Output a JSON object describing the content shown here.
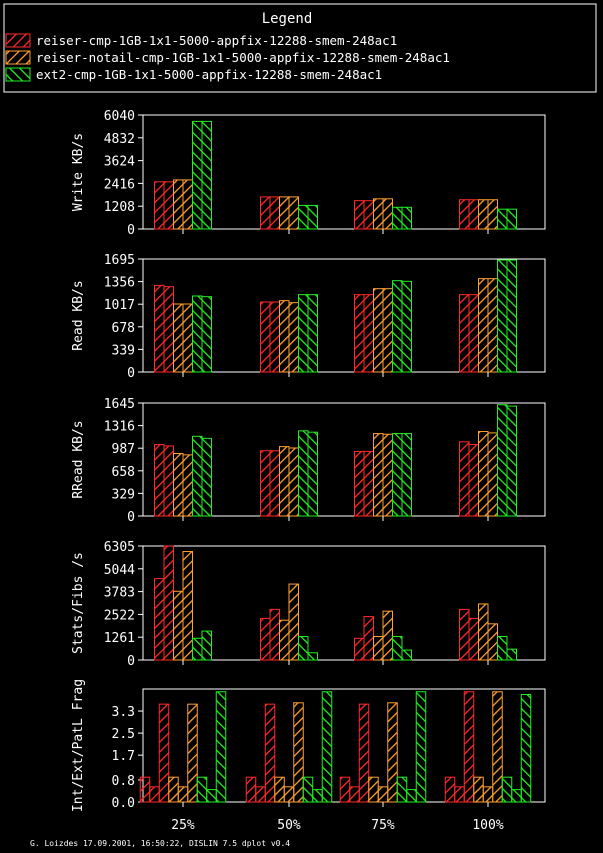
{
  "legend": {
    "title": "Legend",
    "entries": [
      "reiser-cmp-1GB-1x1-5000-appfix-12288-smem-248ac1",
      "reiser-notail-cmp-1GB-1x1-5000-appfix-12288-smem-248ac1",
      "ext2-cmp-1GB-1x1-5000-appfix-12288-smem-248ac1"
    ],
    "colors": [
      "#ff2a2a",
      "#ffa030",
      "#22ee22"
    ]
  },
  "footer": "G. Loizdes 17.09.2001, 16:50:22, DISLIN 7.5 dplot v0.4",
  "chart_data": [
    {
      "type": "bar",
      "ylabel": "Write KB/s",
      "categories": [
        "25%",
        "50%",
        "75%",
        "100%"
      ],
      "yticks": [
        "0",
        "1208",
        "2416",
        "3624",
        "4832",
        "6040"
      ],
      "ylim": [
        0,
        6040
      ],
      "bars_per_series": 2,
      "series": [
        {
          "name": "reiser-cmp-1GB-1x1-5000-appfix-12288-smem-248ac1",
          "values": [
            [
              2500,
              2500
            ],
            [
              1700,
              1700
            ],
            [
              1500,
              1500
            ],
            [
              1550,
              1550
            ]
          ]
        },
        {
          "name": "reiser-notail-cmp-1GB-1x1-5000-appfix-12288-smem-248ac1",
          "values": [
            [
              2600,
              2600
            ],
            [
              1700,
              1700
            ],
            [
              1600,
              1600
            ],
            [
              1550,
              1550
            ]
          ]
        },
        {
          "name": "ext2-cmp-1GB-1x1-5000-appfix-12288-smem-248ac1",
          "values": [
            [
              5700,
              5700
            ],
            [
              1250,
              1250
            ],
            [
              1150,
              1150
            ],
            [
              1050,
              1050
            ]
          ]
        }
      ]
    },
    {
      "type": "bar",
      "ylabel": "Read KB/s",
      "categories": [
        "25%",
        "50%",
        "75%",
        "100%"
      ],
      "yticks": [
        "0",
        "339",
        "678",
        "1017",
        "1356",
        "1695"
      ],
      "ylim": [
        0,
        1695
      ],
      "bars_per_series": 2,
      "series": [
        {
          "name": "reiser-cmp-1GB-1x1-5000-appfix-12288-smem-248ac1",
          "values": [
            [
              1300,
              1280
            ],
            [
              1050,
              1050
            ],
            [
              1160,
              1160
            ],
            [
              1160,
              1160
            ]
          ]
        },
        {
          "name": "reiser-notail-cmp-1GB-1x1-5000-appfix-12288-smem-248ac1",
          "values": [
            [
              1020,
              1020
            ],
            [
              1070,
              1040
            ],
            [
              1250,
              1250
            ],
            [
              1400,
              1400
            ]
          ]
        },
        {
          "name": "ext2-cmp-1GB-1x1-5000-appfix-12288-smem-248ac1",
          "values": [
            [
              1140,
              1130
            ],
            [
              1160,
              1160
            ],
            [
              1370,
              1360
            ],
            [
              1680,
              1680
            ]
          ]
        }
      ]
    },
    {
      "type": "bar",
      "ylabel": "RRead KB/s",
      "categories": [
        "25%",
        "50%",
        "75%",
        "100%"
      ],
      "yticks": [
        "0",
        "329",
        "658",
        "987",
        "1316",
        "1645"
      ],
      "ylim": [
        0,
        1645
      ],
      "bars_per_series": 2,
      "series": [
        {
          "name": "reiser-cmp-1GB-1x1-5000-appfix-12288-smem-248ac1",
          "values": [
            [
              1040,
              1020
            ],
            [
              950,
              950
            ],
            [
              940,
              940
            ],
            [
              1080,
              1040
            ]
          ]
        },
        {
          "name": "reiser-notail-cmp-1GB-1x1-5000-appfix-12288-smem-248ac1",
          "values": [
            [
              910,
              890
            ],
            [
              1010,
              990
            ],
            [
              1200,
              1190
            ],
            [
              1230,
              1210
            ]
          ]
        },
        {
          "name": "ext2-cmp-1GB-1x1-5000-appfix-12288-smem-248ac1",
          "values": [
            [
              1160,
              1130
            ],
            [
              1240,
              1220
            ],
            [
              1200,
              1200
            ],
            [
              1620,
              1600
            ]
          ]
        }
      ]
    },
    {
      "type": "bar",
      "ylabel": "Stats/Fibs /s",
      "categories": [
        "25%",
        "50%",
        "75%",
        "100%"
      ],
      "yticks": [
        "0",
        "1261",
        "2522",
        "3783",
        "5044",
        "6305"
      ],
      "ylim": [
        0,
        6305
      ],
      "bars_per_series": 2,
      "series": [
        {
          "name": "reiser-cmp-1GB-1x1-5000-appfix-12288-smem-248ac1",
          "values": [
            [
              4500,
              6300
            ],
            [
              2300,
              2800
            ],
            [
              1200,
              2400
            ],
            [
              2800,
              2300
            ]
          ]
        },
        {
          "name": "reiser-notail-cmp-1GB-1x1-5000-appfix-12288-smem-248ac1",
          "values": [
            [
              3800,
              6000
            ],
            [
              2200,
              4200
            ],
            [
              1300,
              2700
            ],
            [
              3100,
              2000
            ]
          ]
        },
        {
          "name": "ext2-cmp-1GB-1x1-5000-appfix-12288-smem-248ac1",
          "values": [
            [
              1200,
              1600
            ],
            [
              1300,
              400
            ],
            [
              1300,
              550
            ],
            [
              1300,
              600
            ]
          ]
        }
      ]
    },
    {
      "type": "bar",
      "ylabel": "Int/Ext/PatL Frag",
      "categories": [
        "25%",
        "50%",
        "75%",
        "100%"
      ],
      "yticks": [
        "0.0",
        "0.8",
        "1.7",
        "2.5",
        "3.3"
      ],
      "ylim": [
        0,
        4.1
      ],
      "bars_per_series": 3,
      "series": [
        {
          "name": "reiser-cmp-1GB-1x1-5000-appfix-12288-smem-248ac1",
          "values": [
            [
              0.9,
              0.55,
              3.55
            ],
            [
              0.9,
              0.55,
              3.55
            ],
            [
              0.9,
              0.55,
              3.55
            ],
            [
              0.9,
              0.55,
              4.0
            ]
          ]
        },
        {
          "name": "reiser-notail-cmp-1GB-1x1-5000-appfix-12288-smem-248ac1",
          "values": [
            [
              0.9,
              0.55,
              3.55
            ],
            [
              0.9,
              0.55,
              3.6
            ],
            [
              0.9,
              0.55,
              3.6
            ],
            [
              0.9,
              0.55,
              4.0
            ]
          ]
        },
        {
          "name": "ext2-cmp-1GB-1x1-5000-appfix-12288-smem-248ac1",
          "values": [
            [
              0.9,
              0.45,
              4.0
            ],
            [
              0.9,
              0.45,
              4.0
            ],
            [
              0.9,
              0.45,
              4.0
            ],
            [
              0.9,
              0.45,
              3.9
            ]
          ]
        }
      ]
    }
  ]
}
